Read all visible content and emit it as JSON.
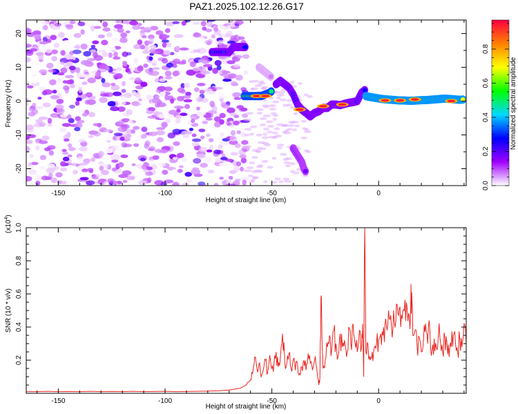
{
  "title": "PAZ1.2025.102.12.26.G17",
  "chart_data": [
    {
      "type": "heatmap",
      "xlabel": "Height of straight line (km)",
      "ylabel": "Frequency (Hz)",
      "xlim": [
        -165,
        41
      ],
      "ylim": [
        -25,
        24
      ],
      "x_ticks": [
        -150,
        -100,
        -50,
        0
      ],
      "y_ticks": [
        -20,
        -10,
        0,
        10,
        20
      ],
      "colorbar": {
        "label": "Normalized spectral amplitude",
        "range": [
          0,
          0.97
        ],
        "ticks": [
          0.0,
          0.2,
          0.4,
          0.6,
          0.8
        ],
        "colors": [
          "#ffffff",
          "#a000ff",
          "#0000ff",
          "#00d8ff",
          "#00ff00",
          "#ffff00",
          "#ff8000",
          "#ff0040"
        ]
      },
      "noise_region": {
        "x_range": [
          -165,
          -62
        ],
        "y_range": [
          -25,
          24
        ],
        "level": 0.12
      },
      "tracks": [
        {
          "x": [
            -78,
            -74,
            -70,
            -68,
            -66,
            -64,
            -62
          ],
          "y": [
            14.5,
            14.5,
            14.5,
            16,
            16,
            16,
            16
          ],
          "level": 0.3
        },
        {
          "x": [
            -63,
            -60,
            -57,
            -55,
            -53,
            -51,
            -50
          ],
          "y": [
            1.5,
            1.5,
            1.5,
            1.5,
            2,
            2.5,
            3
          ],
          "level": 0.6
        },
        {
          "x": [
            -48,
            -46,
            -44,
            -42,
            -40,
            -38,
            -36,
            -34,
            -32,
            -30,
            -28,
            -26,
            -24,
            -22,
            -20,
            -18,
            -16,
            -14,
            -12,
            -10,
            -8,
            -6
          ],
          "y": [
            5,
            6,
            5,
            4,
            2,
            -1,
            -2.5,
            -3.5,
            -4.5,
            -3.5,
            -3,
            -2,
            -2,
            -1,
            -1,
            -1.2,
            -0.8,
            -0.5,
            -0.3,
            0,
            2.5,
            3.5
          ],
          "level": 0.3
        },
        {
          "x": [
            -6,
            -4,
            -2,
            0,
            2,
            4,
            6,
            8,
            10,
            12,
            14,
            16,
            18,
            20,
            22,
            24,
            26,
            28,
            30,
            32,
            34,
            36,
            38,
            40
          ],
          "y": [
            1.5,
            1.2,
            1,
            0.8,
            0.6,
            0.5,
            0.4,
            0.3,
            0.2,
            0.2,
            0.1,
            0.1,
            0.2,
            0.3,
            0.3,
            0.4,
            0.5,
            0.6,
            0.7,
            0.7,
            0.6,
            0.5,
            0.4,
            0.5
          ],
          "level": 0.7
        },
        {
          "x": [
            -40,
            -38,
            -36,
            -35,
            -34
          ],
          "y": [
            -14,
            -16,
            -18,
            -20,
            -21
          ],
          "level": 0.2
        },
        {
          "x": [
            -56,
            -54,
            -52,
            -50
          ],
          "y": [
            10,
            9,
            8,
            7
          ],
          "level": 0.08
        }
      ],
      "hotspots": [
        {
          "x": -57,
          "y": 1.5
        },
        {
          "x": -53,
          "y": 1.5
        },
        {
          "x": -37,
          "y": -2.5
        },
        {
          "x": -26,
          "y": -1.5
        },
        {
          "x": -17,
          "y": -1
        },
        {
          "x": 3,
          "y": 0.2
        },
        {
          "x": 10,
          "y": 0.2
        },
        {
          "x": 17,
          "y": 0.5
        },
        {
          "x": 34,
          "y": 0
        }
      ]
    },
    {
      "type": "line",
      "xlabel": "Height of straight line (km)",
      "ylabel": "SNR (10 * v/v)",
      "y_multiplier_label": "(x10",
      "y_multiplier_exp": "4",
      "y_multiplier_close": ")",
      "xlim": [
        -165,
        41
      ],
      "ylim": [
        0,
        1.0
      ],
      "x_ticks": [
        -150,
        -100,
        -50,
        0
      ],
      "y_ticks": [
        0.2,
        0.4,
        0.6,
        0.8,
        1.0
      ],
      "color": "#e8221c",
      "series": [
        {
          "x": [
            -165,
            -160,
            -155,
            -150,
            -145,
            -140,
            -135,
            -130,
            -125,
            -120,
            -115,
            -110,
            -105,
            -100,
            -95,
            -90,
            -85,
            -80,
            -75,
            -70,
            -65,
            -62,
            -60,
            -59,
            -58,
            -57,
            -56,
            -55,
            -54,
            -53,
            -52,
            -51,
            -50,
            -49,
            -48,
            -47,
            -46,
            -45,
            -44,
            -43,
            -42,
            -41,
            -40,
            -39,
            -38,
            -37,
            -36,
            -35,
            -34,
            -33,
            -32,
            -31,
            -30,
            -29,
            -28,
            -27.5,
            -27,
            -26.5,
            -26,
            -25,
            -24,
            -23,
            -22,
            -21,
            -20,
            -19,
            -18,
            -17,
            -16,
            -15,
            -14,
            -13,
            -12,
            -11,
            -10,
            -9,
            -8,
            -7.5,
            -7,
            -6.5,
            -6,
            -5,
            -4,
            -3,
            -2,
            -1,
            0,
            1,
            2,
            3,
            4,
            5,
            6,
            7,
            8,
            9,
            10,
            11,
            12,
            13,
            14,
            15,
            15.5,
            16,
            17,
            18,
            19,
            20,
            21,
            22,
            23,
            24,
            25,
            26,
            27,
            28,
            29,
            30,
            31,
            32,
            33,
            34,
            35,
            36,
            37,
            38,
            39,
            40,
            41
          ],
          "y": [
            0.01,
            0.01,
            0.012,
            0.01,
            0.011,
            0.01,
            0.012,
            0.01,
            0.011,
            0.01,
            0.012,
            0.01,
            0.011,
            0.012,
            0.01,
            0.011,
            0.012,
            0.013,
            0.015,
            0.02,
            0.03,
            0.05,
            0.08,
            0.12,
            0.22,
            0.15,
            0.18,
            0.1,
            0.14,
            0.2,
            0.12,
            0.23,
            0.15,
            0.18,
            0.25,
            0.16,
            0.22,
            0.36,
            0.2,
            0.18,
            0.24,
            0.15,
            0.2,
            0.14,
            0.18,
            0.12,
            0.16,
            0.2,
            0.14,
            0.24,
            0.18,
            0.14,
            0.2,
            0.16,
            0.05,
            0.1,
            0.58,
            0.3,
            0.15,
            0.2,
            0.28,
            0.35,
            0.26,
            0.38,
            0.3,
            0.22,
            0.36,
            0.28,
            0.32,
            0.22,
            0.4,
            0.3,
            0.42,
            0.3,
            0.25,
            0.38,
            0.28,
            0.42,
            0.1,
            1.0,
            0.25,
            0.3,
            0.2,
            0.25,
            0.28,
            0.3,
            0.32,
            0.36,
            0.35,
            0.42,
            0.38,
            0.45,
            0.4,
            0.5,
            0.43,
            0.48,
            0.52,
            0.45,
            0.5,
            0.55,
            0.48,
            0.5,
            0.61,
            0.35,
            0.38,
            0.28,
            0.34,
            0.25,
            0.32,
            0.42,
            0.3,
            0.38,
            0.26,
            0.33,
            0.28,
            0.36,
            0.3,
            0.25,
            0.34,
            0.3,
            0.22,
            0.28,
            0.35,
            0.3,
            0.25,
            0.33,
            0.28,
            0.42,
            0.3
          ]
        }
      ]
    }
  ]
}
